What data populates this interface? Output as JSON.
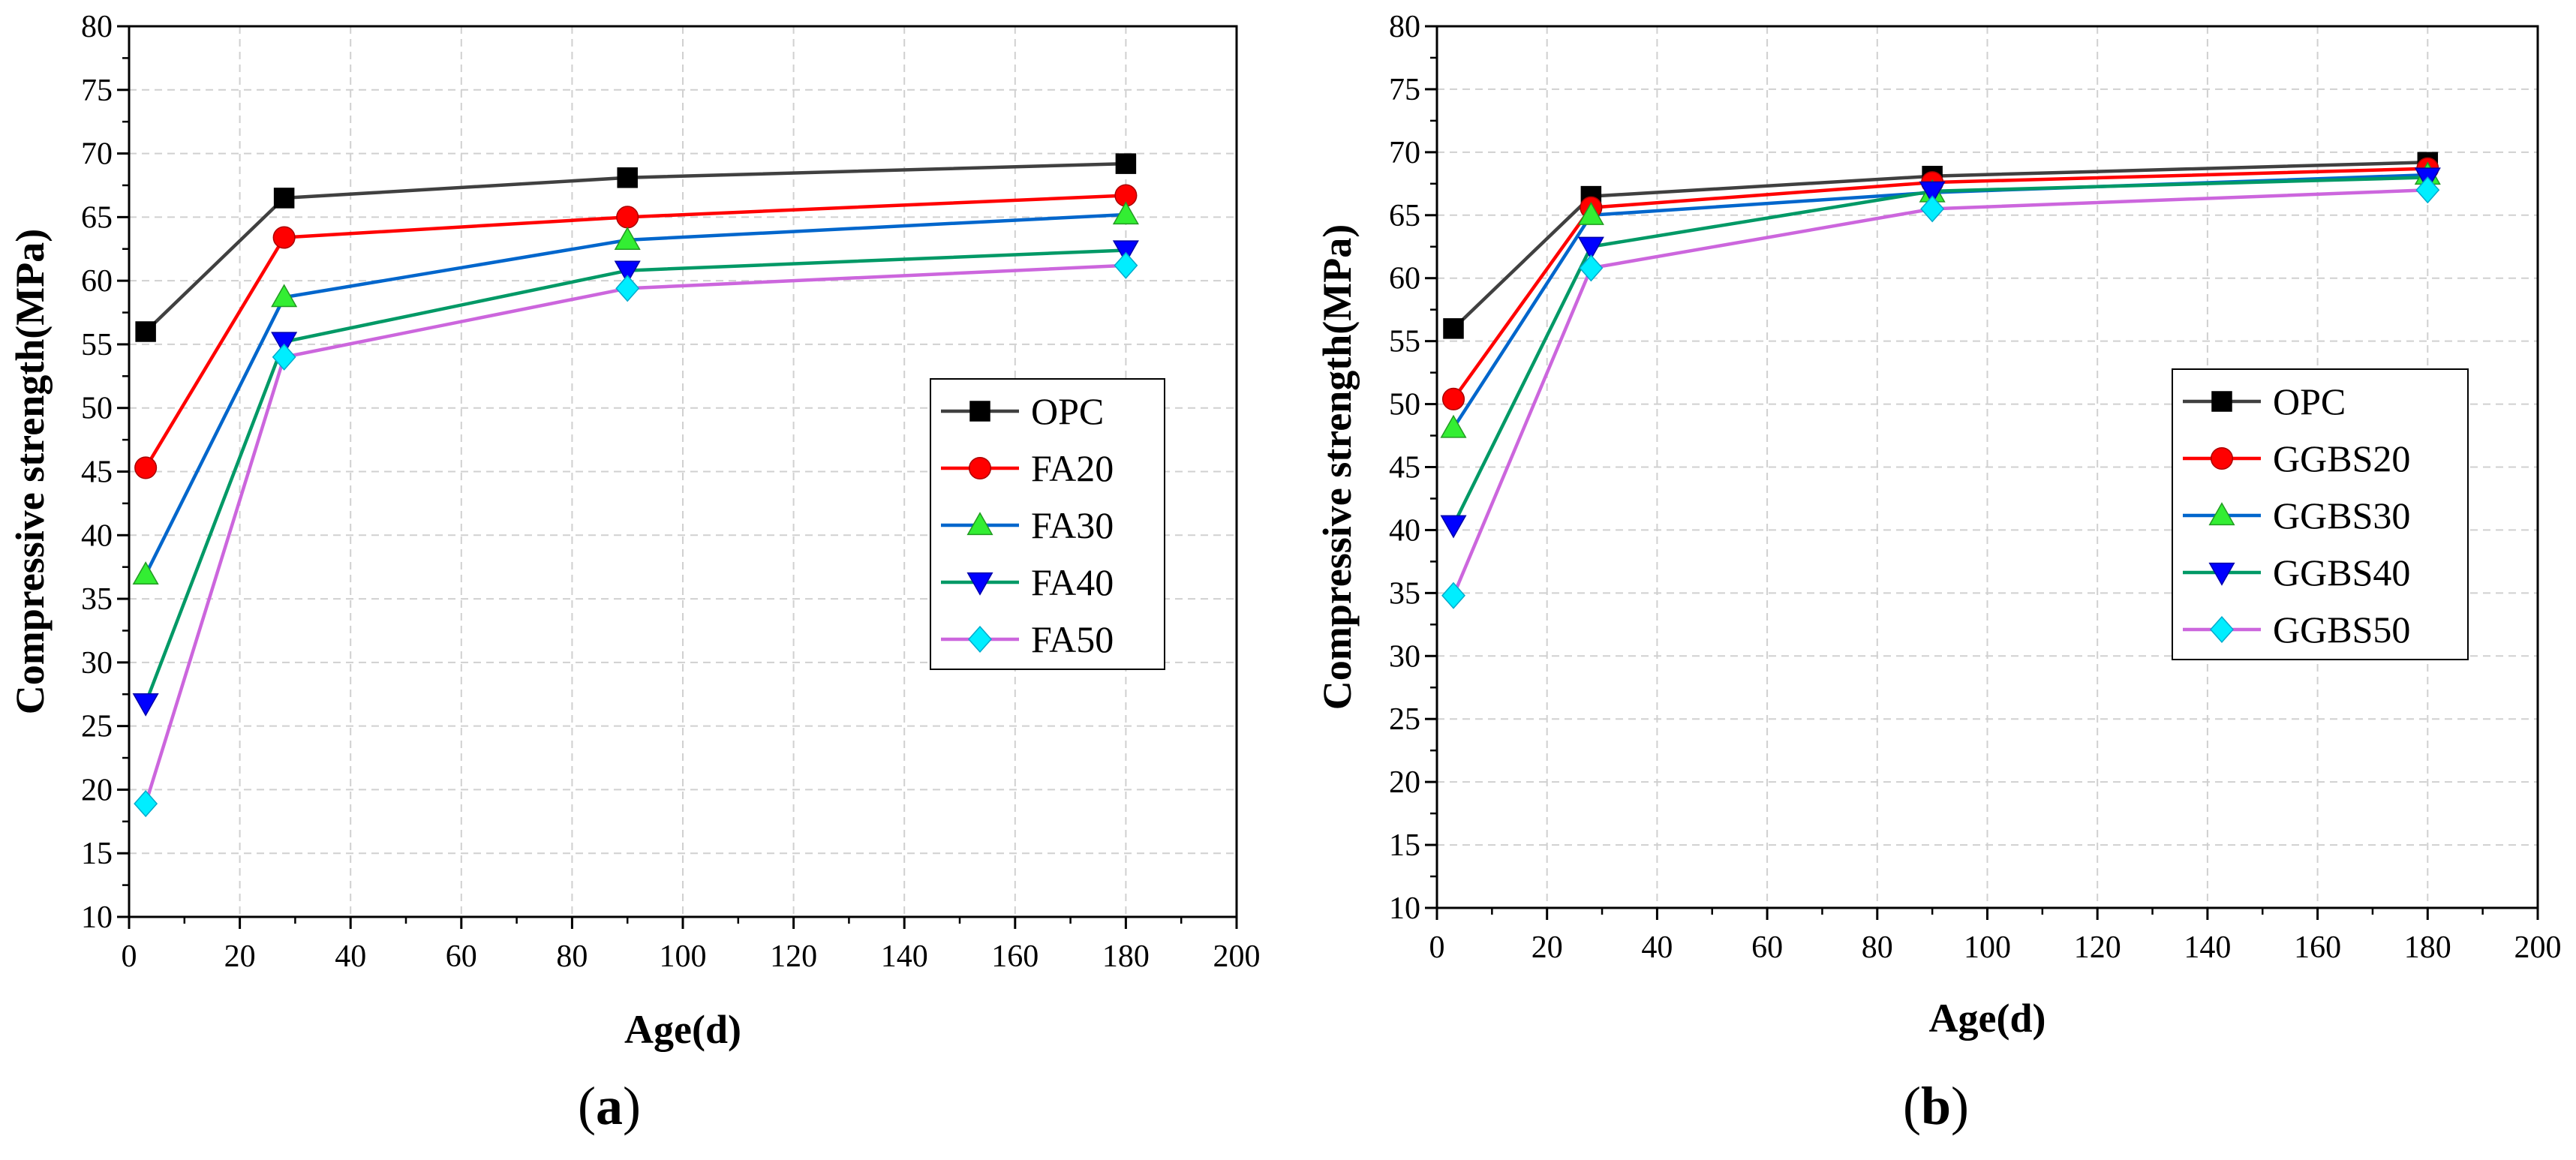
{
  "chart_data": [
    {
      "type": "line",
      "panel_label": "a",
      "xlabel": "Age(d)",
      "ylabel": "Compressive strength(MPa)",
      "xlim": [
        0,
        200
      ],
      "ylim": [
        10,
        80
      ],
      "xticks": [
        0,
        20,
        40,
        60,
        80,
        100,
        120,
        140,
        160,
        180,
        200
      ],
      "yticks": [
        10,
        15,
        20,
        25,
        30,
        35,
        40,
        45,
        50,
        55,
        60,
        65,
        70,
        75,
        80
      ],
      "grid": true,
      "legend_position": "right-middle",
      "x": [
        3,
        28,
        90,
        180
      ],
      "series": [
        {
          "name": "OPC",
          "values": [
            56.0,
            66.5,
            68.1,
            69.2
          ],
          "color": "#404040",
          "marker": "square"
        },
        {
          "name": "FA20",
          "values": [
            45.3,
            63.4,
            65.0,
            66.7
          ],
          "color": "#ff0000",
          "marker": "circle"
        },
        {
          "name": "FA30",
          "values": [
            36.9,
            58.7,
            63.2,
            65.2
          ],
          "color": "#0066cc",
          "marker": "triangle-up",
          "marker_color": "#33ee33"
        },
        {
          "name": "FA40",
          "values": [
            26.8,
            55.2,
            60.8,
            62.4
          ],
          "color": "#009966",
          "marker": "triangle-down",
          "marker_color": "#0000ff"
        },
        {
          "name": "FA50",
          "values": [
            18.9,
            54.0,
            59.4,
            61.2
          ],
          "color": "#cc66dd",
          "marker": "diamond",
          "marker_color": "#00eeff"
        }
      ]
    },
    {
      "type": "line",
      "panel_label": "b",
      "xlabel": "Age(d)",
      "ylabel": "Compressive strength(MPa)",
      "xlim": [
        0,
        200
      ],
      "ylim": [
        10,
        80
      ],
      "xticks": [
        0,
        20,
        40,
        60,
        80,
        100,
        120,
        140,
        160,
        180,
        200
      ],
      "yticks": [
        10,
        15,
        20,
        25,
        30,
        35,
        40,
        45,
        50,
        55,
        60,
        65,
        70,
        75,
        80
      ],
      "grid": true,
      "legend_position": "right-middle",
      "x": [
        3,
        28,
        90,
        180
      ],
      "series": [
        {
          "name": "OPC",
          "values": [
            56.0,
            66.5,
            68.1,
            69.2
          ],
          "color": "#404040",
          "marker": "square"
        },
        {
          "name": "GGBS20",
          "values": [
            50.4,
            65.6,
            67.6,
            68.7
          ],
          "color": "#ff0000",
          "marker": "circle"
        },
        {
          "name": "GGBS30",
          "values": [
            48.1,
            65.0,
            66.8,
            68.2
          ],
          "color": "#0066cc",
          "marker": "triangle-up",
          "marker_color": "#33ee33"
        },
        {
          "name": "GGBS40",
          "values": [
            40.4,
            62.5,
            66.9,
            68.0
          ],
          "color": "#009966",
          "marker": "triangle-down",
          "marker_color": "#0000ff"
        },
        {
          "name": "GGBS50",
          "values": [
            34.8,
            60.8,
            65.5,
            67.0
          ],
          "color": "#cc66dd",
          "marker": "diamond",
          "marker_color": "#00eeff"
        }
      ]
    }
  ]
}
